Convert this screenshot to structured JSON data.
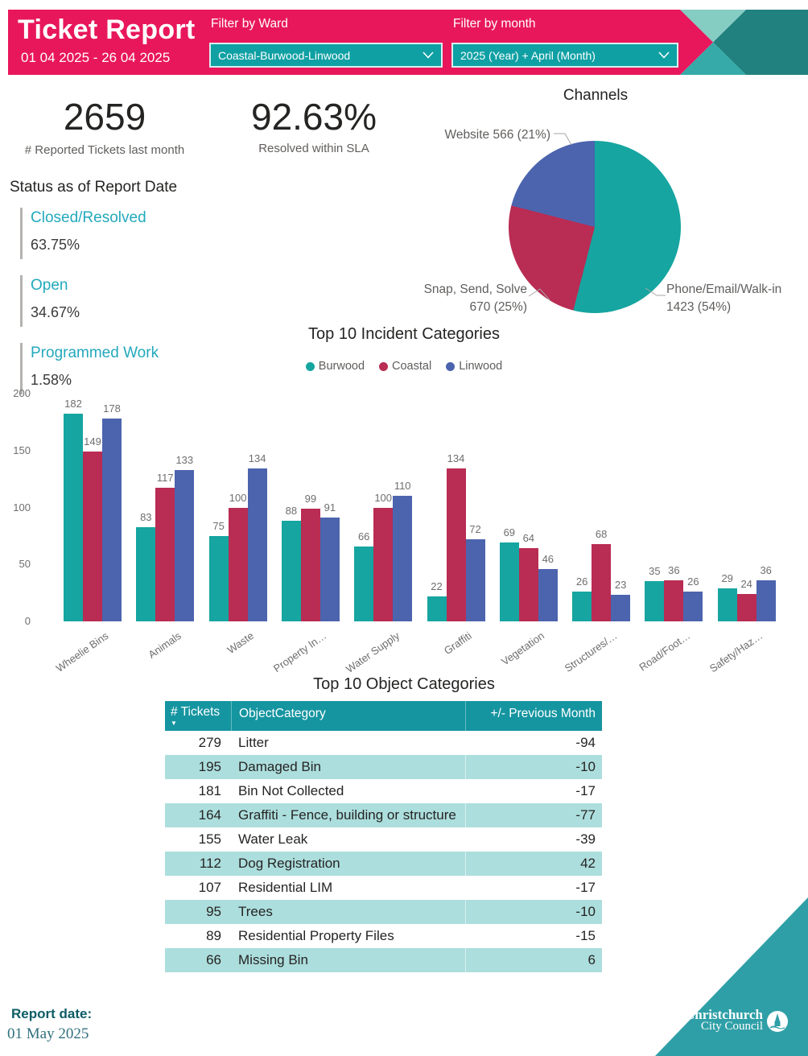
{
  "header": {
    "title": "Ticket Report",
    "date_range": "01 04 2025 - 26 04 2025",
    "filters": [
      {
        "label": "Filter by Ward",
        "value": "Coastal-Burwood-Linwood"
      },
      {
        "label": "Filter by month",
        "value": "2025 (Year) + April (Month)"
      }
    ]
  },
  "kpis": [
    {
      "value": "2659",
      "label": "# Reported Tickets last month"
    },
    {
      "value": "92.63%",
      "label": "Resolved within SLA"
    }
  ],
  "status": {
    "title": "Status as of Report Date",
    "items": [
      {
        "label": "Closed/Resolved",
        "value": "63.75%"
      },
      {
        "label": "Open",
        "value": "34.67%"
      },
      {
        "label": "Programmed Work",
        "value": "1.58%"
      }
    ]
  },
  "footer": {
    "label": "Report date:",
    "date": "01 May 2025"
  },
  "logo": {
    "line1": "Christchurch",
    "line2": "City Council"
  },
  "colors": {
    "pink": "#E8175C",
    "teal": "#0FA0A4",
    "teal_light": "#85CCC3",
    "teal_mid": "#36AAA8",
    "teal_dark": "#20817E",
    "corner": "#2F9FA7",
    "table_header": "#1595A0",
    "table_alt": "#ACDEDD",
    "status": "#23A9BC",
    "footer": "#0D5C66"
  },
  "chart_data": [
    {
      "type": "pie",
      "title": "Channels",
      "slices": [
        {
          "label": "Phone/Email/Walk-in",
          "value": 1423,
          "pct": 54,
          "color": "#16A5A0"
        },
        {
          "label": "Snap, Send, Solve",
          "value": 670,
          "pct": 25,
          "color": "#B92C53"
        },
        {
          "label": "Website",
          "value": 566,
          "pct": 21,
          "color": "#4C64AE"
        }
      ]
    },
    {
      "type": "bar",
      "title": "Top 10 Incident Categories",
      "categories": [
        "Wheelie Bins",
        "Animals",
        "Waste",
        "Property In…",
        "Water Supply",
        "Graffiti",
        "Vegetation",
        "Structures/…",
        "Road/Foot…",
        "Safety/Haz…"
      ],
      "series": [
        {
          "name": "Burwood",
          "color": "#16A5A0",
          "values": [
            182,
            83,
            75,
            88,
            66,
            22,
            69,
            26,
            35,
            29
          ]
        },
        {
          "name": "Coastal",
          "color": "#B92C53",
          "values": [
            149,
            117,
            100,
            99,
            100,
            134,
            64,
            68,
            36,
            24
          ]
        },
        {
          "name": "Linwood",
          "color": "#4C64AE",
          "values": [
            178,
            133,
            134,
            91,
            110,
            72,
            46,
            23,
            26,
            36
          ]
        }
      ],
      "xlabel": "",
      "ylabel": "",
      "ylim": [
        0,
        200
      ],
      "yticks": [
        0,
        50,
        100,
        150,
        200
      ],
      "grid": false,
      "legend_position": "top"
    },
    {
      "type": "table",
      "title": "Top 10 Object Categories",
      "columns": [
        "# Tickets",
        "ObjectCategory",
        "+/- Previous Month"
      ],
      "rows": [
        [
          279,
          "Litter",
          -94
        ],
        [
          195,
          "Damaged Bin",
          -10
        ],
        [
          181,
          "Bin Not Collected",
          -17
        ],
        [
          164,
          "Graffiti - Fence, building or structure",
          -77
        ],
        [
          155,
          "Water Leak",
          -39
        ],
        [
          112,
          "Dog Registration",
          42
        ],
        [
          107,
          "Residential LIM",
          -17
        ],
        [
          95,
          "Trees",
          -10
        ],
        [
          89,
          "Residential Property Files",
          -15
        ],
        [
          66,
          "Missing Bin",
          6
        ]
      ]
    }
  ]
}
